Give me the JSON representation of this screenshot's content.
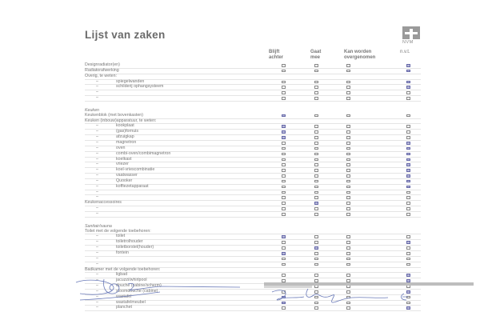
{
  "title": "Lijst van zaken",
  "logo_text": "NVM",
  "columns": [
    "Blijft achter",
    "Gaat mee",
    "Kan worden overgenomen",
    "n.v.t."
  ],
  "column_lines": [
    [
      "Blijft",
      "achter"
    ],
    [
      "Gaat",
      "mee"
    ],
    [
      "Kan worden",
      "overgenomen"
    ],
    [
      "n.v.t.",
      ""
    ]
  ],
  "rows": [
    {
      "kind": "row",
      "label": "Designradiator(en)",
      "checked": 3
    },
    {
      "kind": "row",
      "label": "Radiatorafwerking",
      "checked": 3
    },
    {
      "kind": "head",
      "label": "Overig, te weten:"
    },
    {
      "kind": "item",
      "label": "spiegelwanden",
      "checked": 3
    },
    {
      "kind": "item",
      "label": "schilderij ophangsysteem",
      "checked": 3
    },
    {
      "kind": "item",
      "label": "",
      "checked": -1
    },
    {
      "kind": "item",
      "label": "",
      "checked": -1
    },
    {
      "kind": "gap"
    },
    {
      "kind": "section",
      "label": "Keuken"
    },
    {
      "kind": "row",
      "label": "Keukenblok (met bovenkasten)",
      "checked": 0
    },
    {
      "kind": "head",
      "label": "Keuken (inbouw)apparatuur, te weten:"
    },
    {
      "kind": "item",
      "label": "kookplaat",
      "checked": 0
    },
    {
      "kind": "item",
      "label": "(gas)fornuis",
      "checked": 0
    },
    {
      "kind": "item",
      "label": "afzuigkap",
      "checked": 0
    },
    {
      "kind": "item",
      "label": "magnetron",
      "checked": 3
    },
    {
      "kind": "item",
      "label": "oven",
      "checked": 3
    },
    {
      "kind": "item",
      "label": "combi-oven/combimagnetron",
      "checked": 3
    },
    {
      "kind": "item",
      "label": "koelkast",
      "checked": 3
    },
    {
      "kind": "item",
      "label": "vriezer",
      "checked": 3
    },
    {
      "kind": "item",
      "label": "koel-vriescombinatie",
      "checked": 3
    },
    {
      "kind": "item",
      "label": "vaatwasser",
      "checked": 3
    },
    {
      "kind": "item",
      "label": "Quooker",
      "checked": 3
    },
    {
      "kind": "item",
      "label": "koffiezetapparaat",
      "checked": 3
    },
    {
      "kind": "item",
      "label": "",
      "checked": -1
    },
    {
      "kind": "item",
      "label": "",
      "checked": -1
    },
    {
      "kind": "row",
      "label": "Keukenaccessoires",
      "checked": 1
    },
    {
      "kind": "item",
      "label": "",
      "checked": -1
    },
    {
      "kind": "item",
      "label": "",
      "checked": -1
    },
    {
      "kind": "gap"
    },
    {
      "kind": "section",
      "label": "Sanitair/sauna"
    },
    {
      "kind": "head",
      "label": "Toilet met de volgende toebehoren:"
    },
    {
      "kind": "item",
      "label": "toilet",
      "checked": 0
    },
    {
      "kind": "item",
      "label": "toiletrolhouder",
      "checked": 3
    },
    {
      "kind": "item",
      "label": "toiletborstel(houder)",
      "checked": 1
    },
    {
      "kind": "item",
      "label": "fontein",
      "checked": 0
    },
    {
      "kind": "item",
      "label": "",
      "checked": -1
    },
    {
      "kind": "item",
      "label": "",
      "checked": -1
    },
    {
      "kind": "head",
      "label": "Badkamer met de volgende toebehoren:"
    },
    {
      "kind": "item",
      "label": "ligbad",
      "checked": 3
    },
    {
      "kind": "item",
      "label": "jacuzzi/whirlpool",
      "checked": 3
    },
    {
      "kind": "item",
      "label": "douche (cabine/scherm)",
      "checked": 0
    },
    {
      "kind": "item",
      "label": "stoomdouche (cabine)",
      "checked": 3
    },
    {
      "kind": "item",
      "label": "wastafel",
      "checked": 0
    },
    {
      "kind": "item",
      "label": "wastafelmeubel",
      "checked": 0
    },
    {
      "kind": "item",
      "label": "planchet",
      "checked": 3
    }
  ],
  "colors": {
    "check_fill": "#b7b9d8",
    "ink": "#6a7ab8",
    "text": "#777777"
  }
}
